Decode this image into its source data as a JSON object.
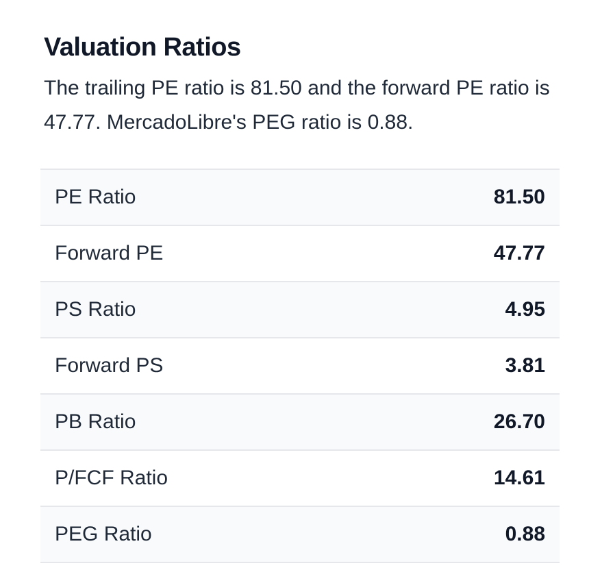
{
  "section": {
    "title": "Valuation Ratios",
    "description": "The trailing PE ratio is 81.50 and the forward PE ratio is 47.77. MercadoLibre's PEG ratio is 0.88."
  },
  "ratios": [
    {
      "label": "PE Ratio",
      "value": "81.50"
    },
    {
      "label": "Forward PE",
      "value": "47.77"
    },
    {
      "label": "PS Ratio",
      "value": "4.95"
    },
    {
      "label": "Forward PS",
      "value": "3.81"
    },
    {
      "label": "PB Ratio",
      "value": "26.70"
    },
    {
      "label": "P/FCF Ratio",
      "value": "14.61"
    },
    {
      "label": "PEG Ratio",
      "value": "0.88"
    }
  ]
}
